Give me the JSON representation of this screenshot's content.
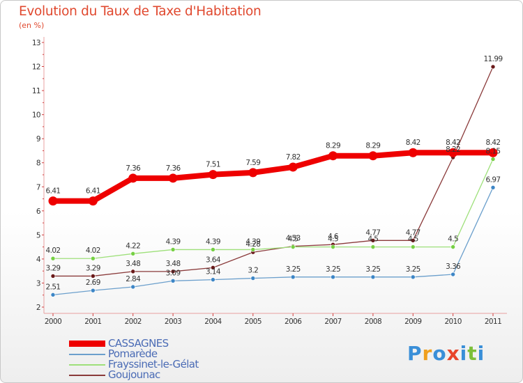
{
  "header": {
    "title": "Evolution du Taux de Taxe d'Habitation",
    "subtitle": "(en %)"
  },
  "logo": {
    "text": "Proxiti",
    "colors": [
      "#3a8fd8",
      "#f0a01e",
      "#3a8fd8",
      "#e8442a",
      "#3a8fd8",
      "#7cbf3a",
      "#3a8fd8"
    ]
  },
  "chart_data": {
    "type": "line",
    "title": "Evolution du Taux de Taxe d'Habitation",
    "ylabel": "(en %)",
    "xlabel": "",
    "categories": [
      "2000",
      "2001",
      "2002",
      "2003",
      "2004",
      "2005",
      "2006",
      "2007",
      "2008",
      "2009",
      "2010",
      "2011"
    ],
    "ylim": [
      2,
      13
    ],
    "yticks": [
      2,
      3,
      4,
      5,
      6,
      7,
      8,
      9,
      10,
      11,
      12,
      13
    ],
    "grid": false,
    "legend_position": "bottom-left",
    "series": [
      {
        "name": "CASSAGNES",
        "color": "#ee0000",
        "width": 8,
        "marker_r": 6.5,
        "values": [
          6.41,
          6.41,
          7.36,
          7.36,
          7.51,
          7.59,
          7.82,
          8.29,
          8.29,
          8.42,
          8.42,
          8.42
        ],
        "labels": [
          "6.41",
          "6.41",
          "7.36",
          "7.36",
          "7.51",
          "7.59",
          "7.82",
          "8.29",
          "8.29",
          "8.42",
          "8.42",
          "8.42"
        ]
      },
      {
        "name": "Pomarède",
        "color": "#6b9fcc",
        "marker": "#3d86c6",
        "width": 1.3,
        "marker_r": 3,
        "values": [
          2.51,
          2.69,
          2.84,
          3.09,
          3.14,
          3.2,
          3.25,
          3.25,
          3.25,
          3.25,
          3.36,
          6.97
        ],
        "labels": [
          "2.51",
          "2.69",
          "2.84",
          "3.09",
          "3.14",
          "3.2",
          "3.25",
          "3.25",
          "3.25",
          "3.25",
          "3.36",
          "6.97"
        ]
      },
      {
        "name": "Frayssinet-le-Gélat",
        "color": "#9ee07a",
        "marker": "#76d044",
        "width": 1.3,
        "marker_r": 3,
        "values": [
          4.02,
          4.02,
          4.22,
          4.39,
          4.39,
          4.39,
          4.5,
          4.5,
          4.5,
          4.5,
          4.5,
          8.15
        ],
        "labels": [
          "4.02",
          "4.02",
          "4.22",
          "4.39",
          "4.39",
          "4.39",
          "4.5",
          "4.5",
          "4.5",
          "4.5",
          "4.5",
          "8.15"
        ]
      },
      {
        "name": "Goujounac",
        "color": "#8a3a3a",
        "marker": "#6a1a1a",
        "width": 1.3,
        "marker_r": 3,
        "values": [
          3.29,
          3.29,
          3.48,
          3.48,
          3.64,
          4.28,
          4.53,
          4.6,
          4.77,
          4.77,
          8.22,
          11.99
        ],
        "labels": [
          "3.29",
          "3.29",
          "3.48",
          "3.48",
          "3.64",
          "4.28",
          "4.53",
          "4.6",
          "4.77",
          "4.77",
          "8.22",
          "11.99"
        ]
      }
    ]
  }
}
